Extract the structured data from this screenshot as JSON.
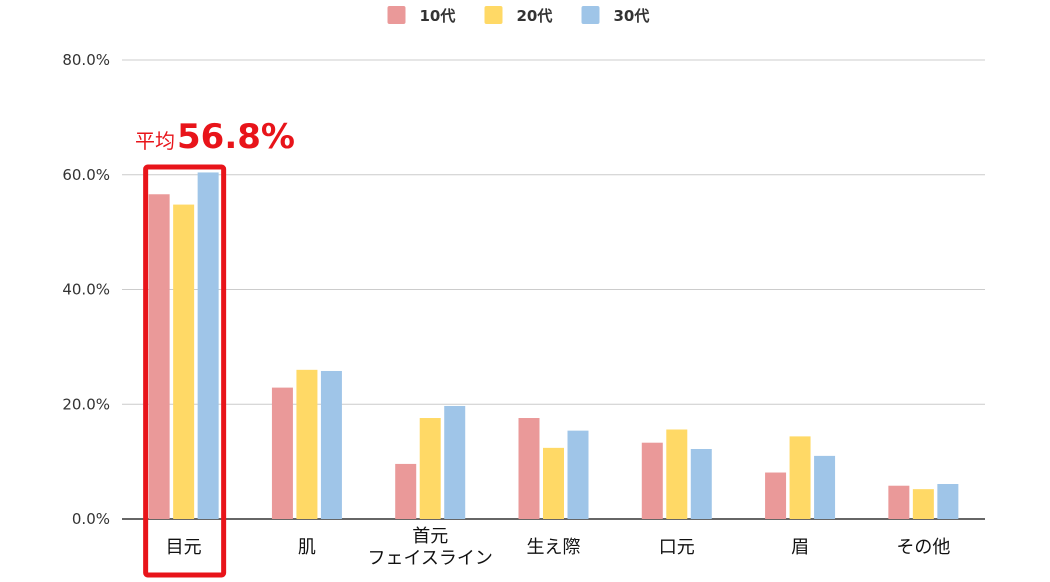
{
  "chart_data": {
    "type": "bar",
    "categories": [
      [
        "目元"
      ],
      [
        "肌"
      ],
      [
        "首元",
        "フェイスライン"
      ],
      [
        "生え際"
      ],
      [
        "口元"
      ],
      [
        "眉"
      ],
      [
        "その他"
      ]
    ],
    "series": [
      {
        "name": "10代",
        "color": "#ea9999",
        "values": [
          56.6,
          22.9,
          9.6,
          17.6,
          13.3,
          8.1,
          5.8
        ]
      },
      {
        "name": "20代",
        "color": "#ffd966",
        "values": [
          54.8,
          26.0,
          17.6,
          12.4,
          15.6,
          14.4,
          5.2
        ]
      },
      {
        "name": "30代",
        "color": "#9fc5e8",
        "values": [
          60.4,
          25.8,
          19.7,
          15.4,
          12.2,
          11.0,
          6.1
        ]
      }
    ],
    "yticks": [
      "0.0%",
      "20.0%",
      "40.0%",
      "60.0%",
      "80.0%"
    ],
    "ylim": [
      0,
      80
    ],
    "grid": true,
    "legend": "top-center",
    "callout": {
      "category": "目元",
      "prefix": "平均",
      "value": "56.8%",
      "color": "#e8141a"
    }
  }
}
